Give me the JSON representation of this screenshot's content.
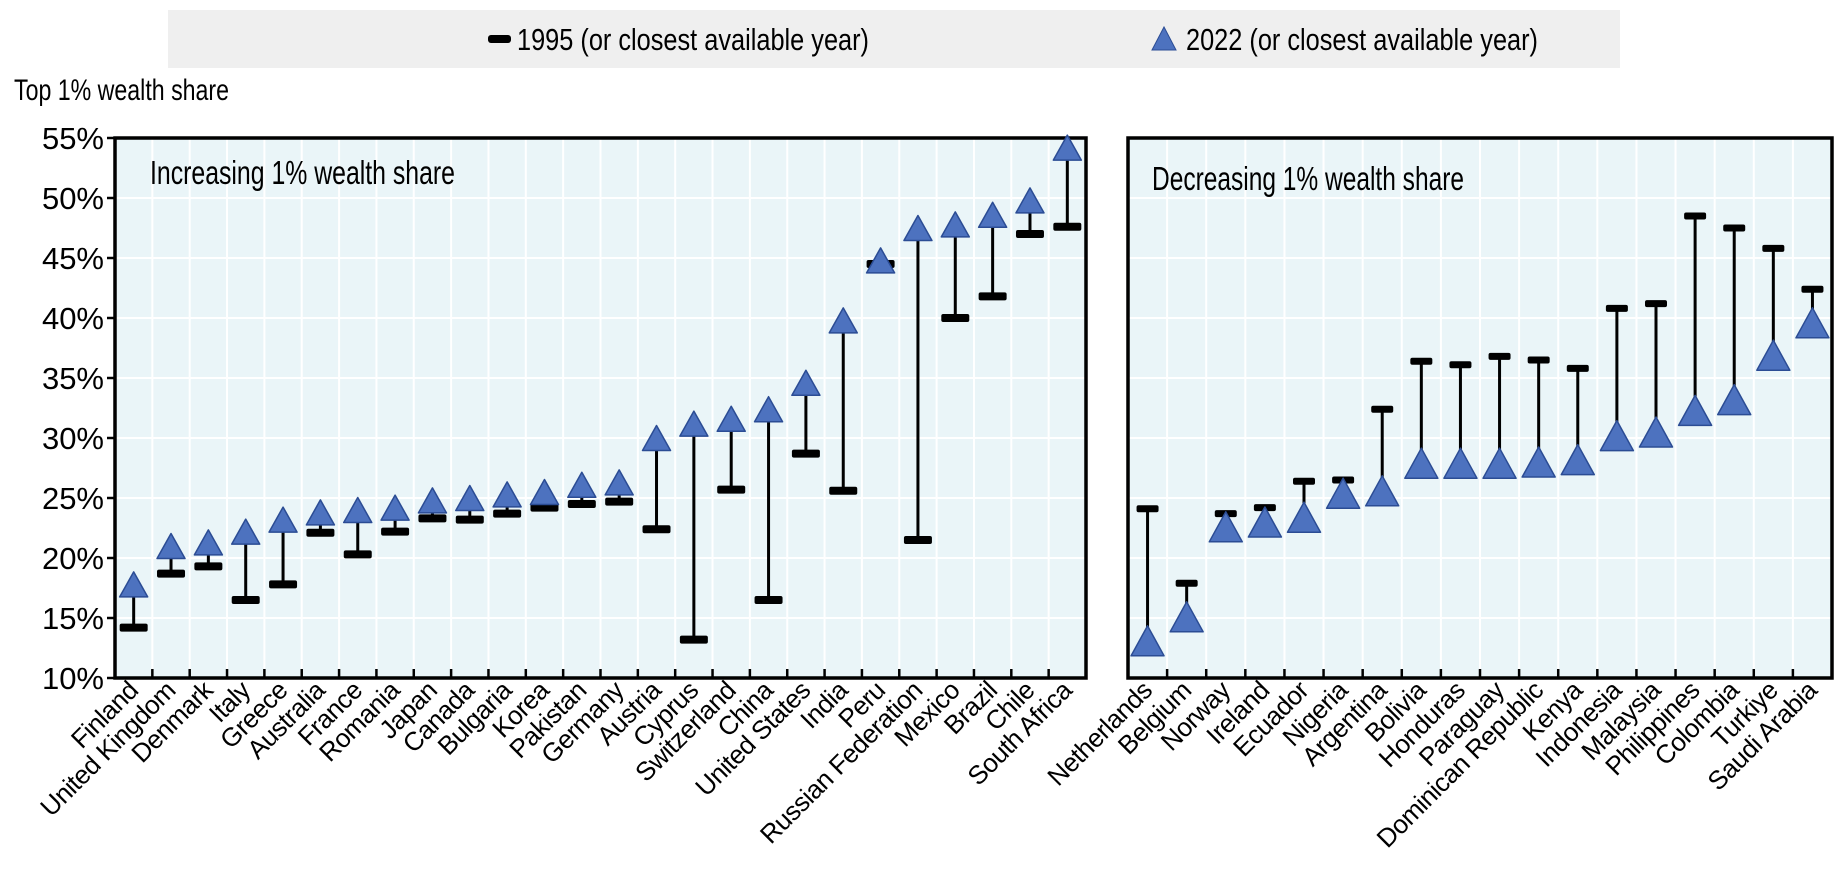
{
  "title": "Top 1% wealth share",
  "legend": {
    "background_color": "#EFEFEF",
    "items": [
      {
        "marker": "dash-icon",
        "label": "1995 (or closest available year)"
      },
      {
        "marker": "triangle-icon",
        "label": "2022 (or closest available year)"
      }
    ]
  },
  "colors": {
    "triangle_fill": "#4D72BF",
    "triangle_edge": "#2B4C94",
    "bar_fill": "#000000",
    "stem": "#000000",
    "plot_background": "#EAF5F8",
    "gridline": "#FFFFFF",
    "border": "#000000",
    "text": "#000000",
    "legend_background": "#EFEFEF"
  },
  "y_axis": {
    "min": 10,
    "max": 55,
    "step": 5,
    "tick_suffix": "%",
    "grid": true
  },
  "chart_data": [
    {
      "type": "dumbbell",
      "panel_title": "Increasing 1% wealth share",
      "legend_position": "top",
      "ylim": [
        10,
        55
      ],
      "categories": [
        "Finland",
        "United Kingdom",
        "Denmark",
        "Italy",
        "Greece",
        "Australia",
        "France",
        "Romania",
        "Japan",
        "Canada",
        "Bulgaria",
        "Korea",
        "Pakistan",
        "Germany",
        "Austria",
        "Cyprus",
        "Switzerland",
        "China",
        "United States",
        "India",
        "Peru",
        "Russian Federation",
        "Mexico",
        "Brazil",
        "Chile",
        "South Africa"
      ],
      "series": [
        {
          "name": "1995 (or closest available year)",
          "marker": "dash",
          "values": [
            14.2,
            18.7,
            19.3,
            16.5,
            17.8,
            22.1,
            20.3,
            22.2,
            23.3,
            23.2,
            23.7,
            24.2,
            24.5,
            24.7,
            22.4,
            13.2,
            25.7,
            16.5,
            28.7,
            25.6,
            44.5,
            21.5,
            40.0,
            41.8,
            47.0,
            47.6
          ]
        },
        {
          "name": "2022 (or closest available year)",
          "marker": "triangle",
          "values": [
            17.8,
            21.0,
            21.3,
            22.2,
            23.2,
            23.8,
            24.0,
            24.2,
            24.8,
            25.0,
            25.3,
            25.5,
            26.1,
            26.3,
            30.0,
            31.2,
            31.6,
            32.4,
            34.6,
            39.8,
            44.8,
            47.5,
            47.8,
            48.6,
            49.8,
            54.2
          ]
        }
      ]
    },
    {
      "type": "dumbbell",
      "panel_title": "Decreasing 1% wealth share",
      "legend_position": "top",
      "ylim": [
        10,
        55
      ],
      "categories": [
        "Netherlands",
        "Belgium",
        "Norway",
        "Ireland",
        "Ecuador",
        "Nigeria",
        "Argentina",
        "Bolivia",
        "Honduras",
        "Paraguay",
        "Dominican Republic",
        "Kenya",
        "Indonesia",
        "Malaysia",
        "Philippines",
        "Colombia",
        "Turkiye",
        "Saudi Arabia"
      ],
      "series": [
        {
          "name": "1995 (or closest available year)",
          "marker": "dash",
          "values": [
            24.1,
            17.9,
            23.7,
            24.2,
            26.4,
            26.5,
            32.4,
            36.4,
            36.1,
            36.8,
            36.5,
            35.8,
            40.8,
            41.2,
            48.5,
            47.5,
            45.8,
            42.4
          ]
        },
        {
          "name": "2022 (or closest available year)",
          "marker": "triangle",
          "values": [
            13.1,
            15.1,
            22.6,
            23.0,
            23.4,
            25.4,
            25.6,
            27.9,
            27.9,
            27.9,
            28.0,
            28.2,
            30.2,
            30.5,
            32.3,
            33.2,
            36.9,
            39.6
          ]
        }
      ]
    }
  ]
}
